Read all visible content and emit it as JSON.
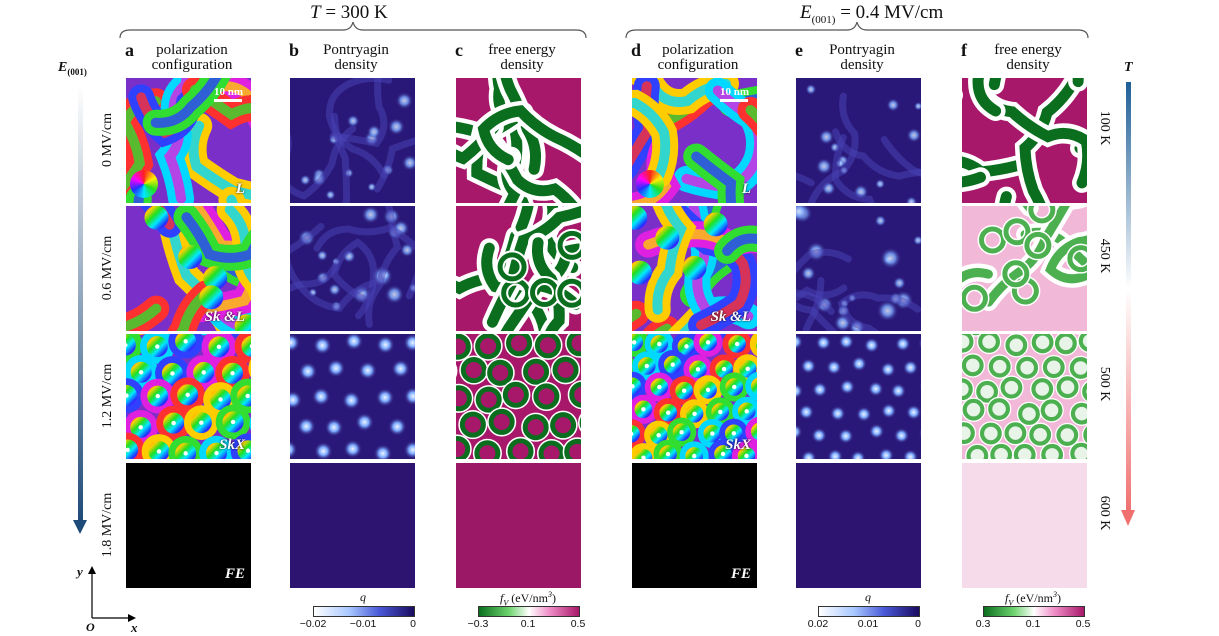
{
  "header_left": {
    "var": "T",
    "rest": " = 300 K"
  },
  "header_right": {
    "var": "E",
    "sub": "(001)",
    "rest": " = 0.4 MV/cm"
  },
  "columns": [
    {
      "letter": "a",
      "title1": "polarization",
      "title2": "configuration"
    },
    {
      "letter": "b",
      "title1": "Pontryagin",
      "title2": "density"
    },
    {
      "letter": "c",
      "title1": "free energy",
      "title2": "density"
    },
    {
      "letter": "d",
      "title1": "polarization",
      "title2": "configuration"
    },
    {
      "letter": "e",
      "title1": "Pontryagin",
      "title2": "density"
    },
    {
      "letter": "f",
      "title1": "free energy",
      "title2": "density"
    }
  ],
  "left_axis": {
    "var": "E",
    "sub": "(001)"
  },
  "right_axis": {
    "var": "T"
  },
  "row_fields": [
    "0 MV/cm",
    "0.6 MV/cm",
    "1.2 MV/cm",
    "1.8 MV/cm"
  ],
  "row_temps": [
    "100 K",
    "450 K",
    "500 K",
    "600 K"
  ],
  "tags_left": [
    "L",
    "Sk &L",
    "SkX",
    "FE"
  ],
  "tags_right": [
    "L",
    "Sk &L",
    "SkX",
    "FE"
  ],
  "scale_bar": "10 nm",
  "coord": {
    "y": "y",
    "o": "O",
    "x": "x"
  },
  "colorbar_b": {
    "label": "q",
    "ticks": [
      "−0.02",
      "−0.01",
      "0"
    ]
  },
  "colorbar_c": {
    "label_var": "f",
    "label_sub": "V",
    "label_unit": "(eV/nm",
    "label_sup": "3",
    "label_end": ")",
    "ticks": [
      "−0.3",
      "0.1",
      "0.5"
    ]
  },
  "colorbar_e": {
    "label": "q",
    "ticks": [
      "0.02",
      "0.01",
      "0"
    ]
  },
  "colorbar_f": {
    "label_var": "f",
    "label_sub": "V",
    "label_unit": "(eV/nm",
    "label_sup": "3",
    "label_end": ")",
    "ticks": [
      "0.3",
      "0.1",
      "0.5"
    ]
  },
  "colors": {
    "pontryagin_dark": "#2a1878",
    "pontryagin_bright": "#d8e8ff",
    "fe_green": "#0a6e1e",
    "fe_magenta": "#a8186a",
    "fe_white": "#ffffff",
    "axis_blue": "#1e5e96",
    "axis_red": "#f07070"
  }
}
